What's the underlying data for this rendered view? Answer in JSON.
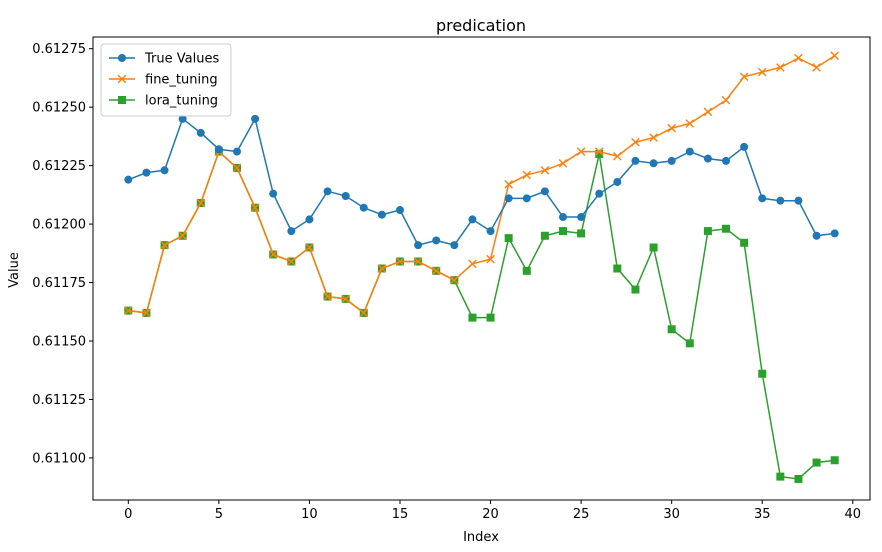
{
  "chart_data": {
    "type": "line",
    "title": "predication",
    "xlabel": "Index",
    "ylabel": "Value",
    "xlim": [
      -1.95,
      40.95
    ],
    "ylim": [
      0.61082,
      0.6128
    ],
    "x_ticks": [
      0,
      5,
      10,
      15,
      20,
      25,
      30,
      35,
      40
    ],
    "x_tick_labels": [
      "0",
      "5",
      "10",
      "15",
      "20",
      "25",
      "30",
      "35",
      "40"
    ],
    "y_ticks": [
      0.611,
      0.61125,
      0.6115,
      0.61175,
      0.612,
      0.61225,
      0.6125,
      0.61275
    ],
    "y_tick_labels": [
      "0.61100",
      "0.61125",
      "0.61150",
      "0.61175",
      "0.61200",
      "0.61225",
      "0.61250",
      "0.61275"
    ],
    "grid": false,
    "legend_position": "top-left",
    "series": [
      {
        "name": "True Values",
        "color": "#1f77b4",
        "marker": "circle",
        "x": [
          0,
          1,
          2,
          3,
          4,
          5,
          6,
          7,
          8,
          9,
          10,
          11,
          12,
          13,
          14,
          15,
          16,
          17,
          18,
          19,
          20,
          21,
          22,
          23,
          24,
          25,
          26,
          27,
          28,
          29,
          30,
          31,
          32,
          33,
          34,
          35,
          36,
          37,
          38,
          39
        ],
        "values": [
          0.61219,
          0.61222,
          0.61223,
          0.61245,
          0.61239,
          0.61232,
          0.61231,
          0.61245,
          0.61213,
          0.61197,
          0.61202,
          0.61214,
          0.61212,
          0.61207,
          0.61204,
          0.61206,
          0.61191,
          0.61193,
          0.61191,
          0.61202,
          0.61197,
          0.61211,
          0.61211,
          0.61214,
          0.61203,
          0.61203,
          0.61213,
          0.61218,
          0.61227,
          0.61226,
          0.61227,
          0.61231,
          0.61228,
          0.61227,
          0.61233,
          0.61211,
          0.6121,
          0.6121,
          0.61195,
          0.61196
        ]
      },
      {
        "name": "fine_tuning",
        "color": "#ff7f0e",
        "marker": "x",
        "x": [
          0,
          1,
          2,
          3,
          4,
          5,
          6,
          7,
          8,
          9,
          10,
          11,
          12,
          13,
          14,
          15,
          16,
          17,
          18,
          19,
          20,
          21,
          22,
          23,
          24,
          25,
          26,
          27,
          28,
          29,
          30,
          31,
          32,
          33,
          34,
          35,
          36,
          37,
          38,
          39
        ],
        "values": [
          0.61163,
          0.61162,
          0.61191,
          0.61195,
          0.61209,
          0.61231,
          0.61224,
          0.61207,
          0.61187,
          0.61184,
          0.6119,
          0.61169,
          0.61168,
          0.61162,
          0.61181,
          0.61184,
          0.61184,
          0.6118,
          0.61176,
          0.61183,
          0.61185,
          0.61217,
          0.61221,
          0.61223,
          0.61226,
          0.61231,
          0.61231,
          0.61229,
          0.61235,
          0.61237,
          0.61241,
          0.61243,
          0.61248,
          0.61253,
          0.61263,
          0.61265,
          0.61267,
          0.61271,
          0.61267,
          0.61272
        ]
      },
      {
        "name": "lora_tuning",
        "color": "#2ca02c",
        "marker": "square",
        "x": [
          0,
          1,
          2,
          3,
          4,
          5,
          6,
          7,
          8,
          9,
          10,
          11,
          12,
          13,
          14,
          15,
          16,
          17,
          18,
          19,
          20,
          21,
          22,
          23,
          24,
          25,
          26,
          27,
          28,
          29,
          30,
          31,
          32,
          33,
          34,
          35,
          36,
          37,
          38,
          39
        ],
        "values": [
          0.61163,
          0.61162,
          0.61191,
          0.61195,
          0.61209,
          0.61231,
          0.61224,
          0.61207,
          0.61187,
          0.61184,
          0.6119,
          0.61169,
          0.61168,
          0.61162,
          0.61181,
          0.61184,
          0.61184,
          0.6118,
          0.61176,
          0.6116,
          0.6116,
          0.61194,
          0.6118,
          0.61195,
          0.61197,
          0.61196,
          0.6123,
          0.61181,
          0.61172,
          0.6119,
          0.61155,
          0.61149,
          0.61197,
          0.61198,
          0.61192,
          0.61136,
          0.61092,
          0.61091,
          0.61098,
          0.61099
        ]
      }
    ]
  }
}
